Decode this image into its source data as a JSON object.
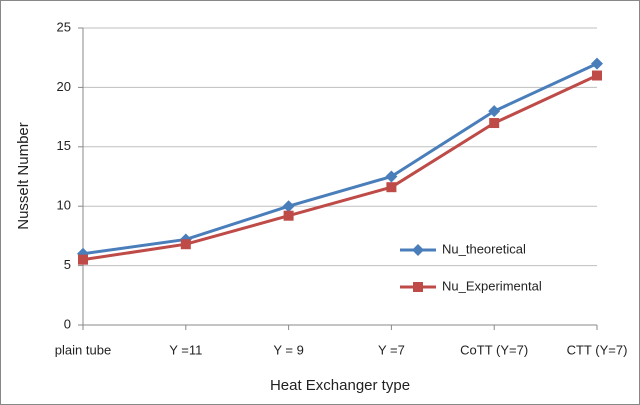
{
  "chart_data": {
    "type": "line",
    "x_label": "Heat Exchanger type",
    "y_label": "Nusselt Number",
    "categories": [
      "plain tube",
      "Y =11",
      "Y = 9",
      "Y =7",
      "CoTT (Y=7)",
      "CTT (Y=7)"
    ],
    "series": [
      {
        "name": "Nu_theoretical",
        "color": "#4a7ebb",
        "marker": "diamond",
        "values": [
          6,
          7.2,
          10,
          12.5,
          18,
          22
        ]
      },
      {
        "name": "Nu_Experimental",
        "color": "#be4b48",
        "marker": "square",
        "values": [
          5.5,
          6.8,
          9.2,
          11.6,
          17,
          21
        ]
      }
    ],
    "ylim": [
      0,
      25
    ],
    "yticks": [
      0,
      5,
      10,
      15,
      20,
      25
    ],
    "grid": true,
    "legend": "right"
  }
}
